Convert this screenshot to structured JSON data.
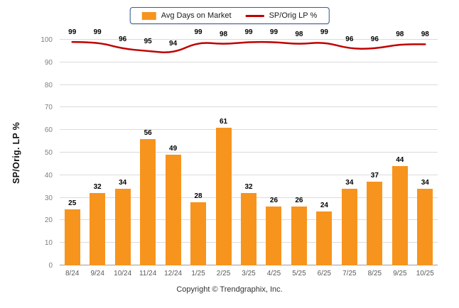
{
  "legend": {
    "bar_label": "Avg Days on Market",
    "line_label": "SP/Orig LP %"
  },
  "footer": "Copyright © Trendgraphix, Inc.",
  "colors": {
    "bar": "#F7941E",
    "line": "#C00000",
    "grid": "#DBDBDB",
    "baseline": "#9E9E9E"
  },
  "chart_data": {
    "type": "bar",
    "categories": [
      "8/24",
      "9/24",
      "10/24",
      "11/24",
      "12/24",
      "1/25",
      "2/25",
      "3/25",
      "4/25",
      "5/25",
      "6/25",
      "7/25",
      "8/25",
      "9/25",
      "10/25"
    ],
    "series": [
      {
        "name": "Avg Days on Market",
        "type": "bar",
        "values": [
          25,
          32,
          34,
          56,
          49,
          28,
          61,
          32,
          26,
          26,
          24,
          34,
          37,
          44,
          34
        ]
      },
      {
        "name": "SP/Orig LP %",
        "type": "line",
        "values": [
          99,
          99,
          96,
          95,
          94,
          99,
          98,
          99,
          99,
          98,
          99,
          96,
          96,
          98,
          98
        ]
      }
    ],
    "title": "",
    "xlabel": "",
    "ylabel": "SP/Orig. LP %",
    "ylim": [
      0,
      100
    ],
    "yticks": [
      0,
      10,
      20,
      30,
      40,
      50,
      60,
      70,
      80,
      90,
      100
    ],
    "grid": true,
    "legend_position": "top"
  }
}
